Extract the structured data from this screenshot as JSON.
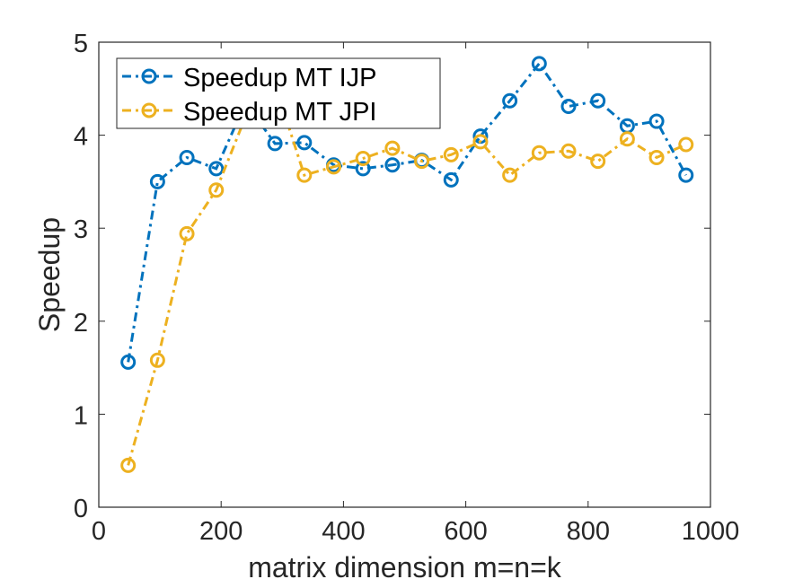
{
  "chart_data": {
    "type": "line",
    "title": "",
    "xlabel": "matrix dimension m=n=k",
    "ylabel": "Speedup",
    "xlim": [
      0,
      1000
    ],
    "ylim": [
      0,
      5
    ],
    "xticks": [
      0,
      200,
      400,
      600,
      800,
      1000
    ],
    "yticks": [
      0,
      1,
      2,
      3,
      4,
      5
    ],
    "xtick_labels": [
      "0",
      "200",
      "400",
      "600",
      "800",
      "1000"
    ],
    "ytick_labels": [
      "0",
      "1",
      "2",
      "3",
      "4",
      "5"
    ],
    "grid": false,
    "legend_position": "top-left",
    "x": [
      48,
      96,
      144,
      192,
      240,
      288,
      336,
      384,
      432,
      480,
      528,
      576,
      624,
      672,
      720,
      768,
      816,
      864,
      912,
      960
    ],
    "series": [
      {
        "name": "Speedup MT IJP",
        "color": "#0072BD",
        "line_style": "dash-dot",
        "marker": "circle",
        "values": [
          1.56,
          3.5,
          3.76,
          3.64,
          4.35,
          3.91,
          3.92,
          3.68,
          3.64,
          3.68,
          3.73,
          3.52,
          3.99,
          4.37,
          4.77,
          4.31,
          4.37,
          4.1,
          4.15,
          3.57
        ]
      },
      {
        "name": "Speedup MT JPI",
        "color": "#EDB120",
        "line_style": "dash-dot",
        "marker": "circle",
        "values": [
          0.45,
          1.58,
          2.94,
          3.41,
          4.2,
          4.55,
          3.57,
          3.66,
          3.75,
          3.86,
          3.72,
          3.79,
          3.93,
          3.57,
          3.81,
          3.83,
          3.72,
          3.96,
          3.76,
          3.9
        ]
      }
    ]
  }
}
